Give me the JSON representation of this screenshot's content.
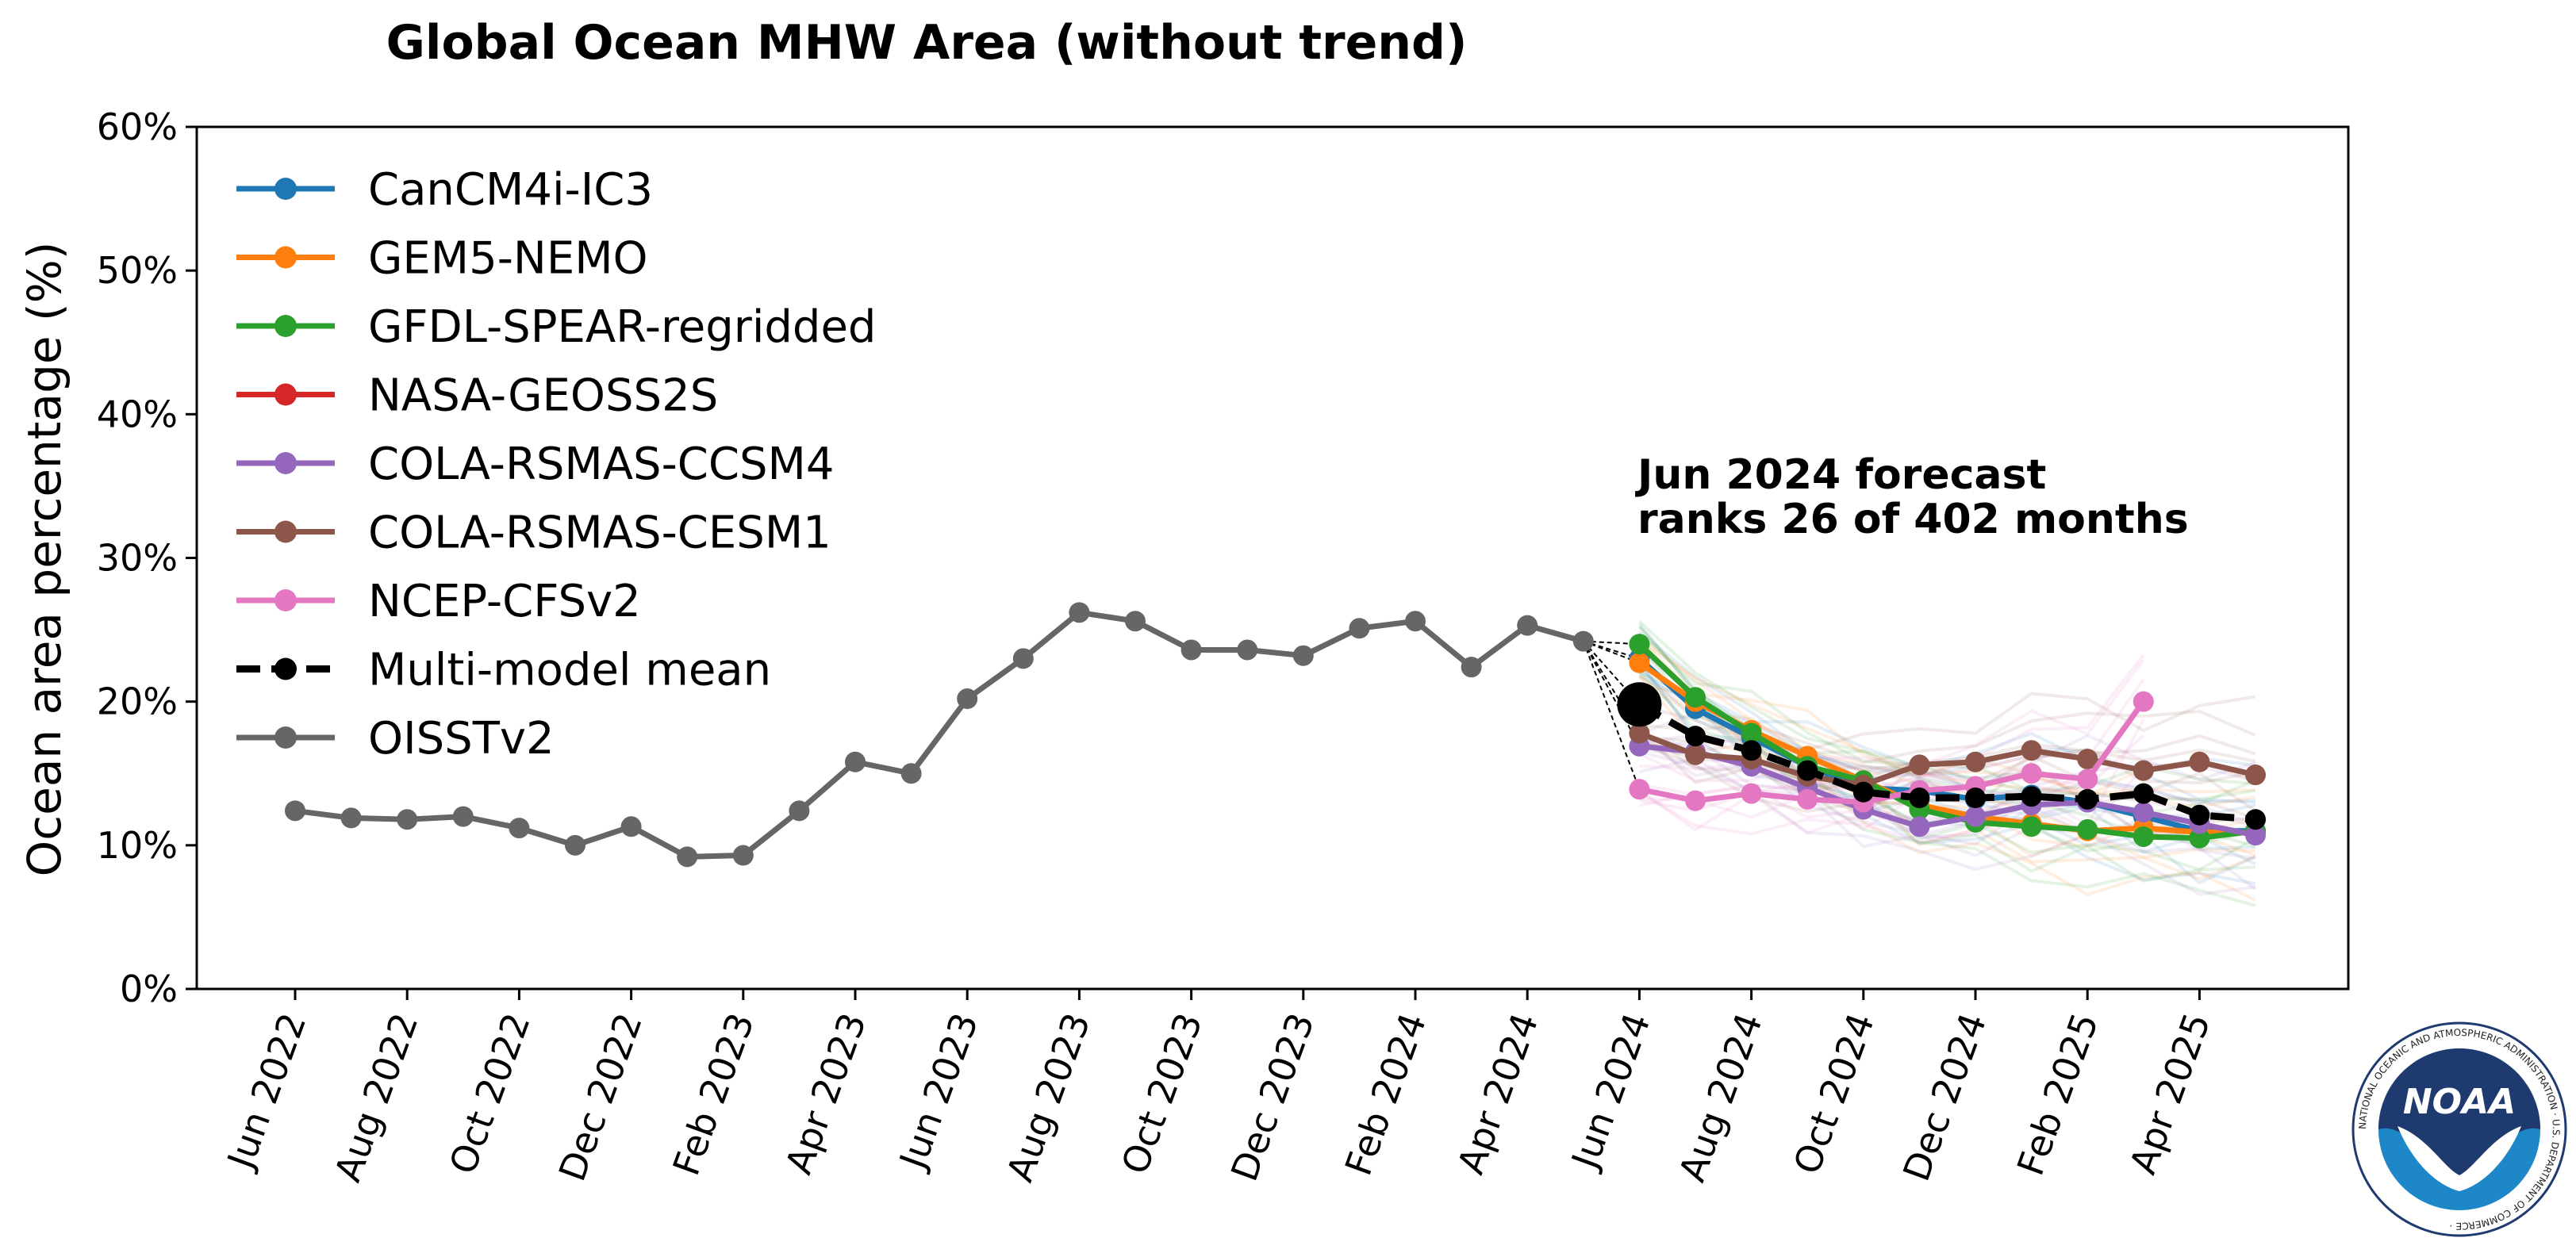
{
  "chart_data": {
    "type": "line",
    "title": "Global Ocean MHW Area (without trend)",
    "ylabel": "Ocean area percentage (%)",
    "xlabel": "",
    "ylim": [
      0,
      60
    ],
    "yticks": [
      "0%",
      "10%",
      "20%",
      "30%",
      "40%",
      "50%",
      "60%"
    ],
    "xtick_labels": [
      "Jun 2022",
      "Aug 2022",
      "Oct 2022",
      "Dec 2022",
      "Feb 2023",
      "Apr 2023",
      "Jun 2023",
      "Aug 2023",
      "Oct 2023",
      "Dec 2023",
      "Feb 2024",
      "Apr 2024",
      "Jun 2024",
      "Aug 2024",
      "Oct 2024",
      "Dec 2024",
      "Feb 2025",
      "Apr 2025"
    ],
    "months": [
      "Jun 2022",
      "Jul 2022",
      "Aug 2022",
      "Sep 2022",
      "Oct 2022",
      "Nov 2022",
      "Dec 2022",
      "Jan 2023",
      "Feb 2023",
      "Mar 2023",
      "Apr 2023",
      "May 2023",
      "Jun 2023",
      "Jul 2023",
      "Aug 2023",
      "Sep 2023",
      "Oct 2023",
      "Nov 2023",
      "Dec 2023",
      "Jan 2024",
      "Feb 2024",
      "Mar 2024",
      "Apr 2024",
      "May 2024",
      "Jun 2024",
      "Jul 2024",
      "Aug 2024",
      "Sep 2024",
      "Oct 2024",
      "Nov 2024",
      "Dec 2024",
      "Jan 2025",
      "Feb 2025",
      "Mar 2025",
      "Apr 2025",
      "May 2025"
    ],
    "grid": false,
    "legend_position": "top-left",
    "annotation": [
      "Jun 2024 forecast",
      "ranks 26 of 402 months"
    ],
    "series": [
      {
        "name": "CanCM4i-IC3",
        "color": "#1f77b4",
        "start": "Jun 2024",
        "values": [
          23.0,
          19.5,
          17.5,
          15.5,
          14.0,
          13.8,
          13.2,
          13.5,
          13.0,
          12.0,
          11.0,
          11.0
        ]
      },
      {
        "name": "GEM5-NEMO",
        "color": "#ff7f0e",
        "start": "Jun 2024",
        "values": [
          22.7,
          20.0,
          18.0,
          16.2,
          14.5,
          12.8,
          12.0,
          11.5,
          11.0,
          11.2,
          10.9,
          10.9
        ]
      },
      {
        "name": "GFDL-SPEAR-regridded",
        "color": "#2ca02c",
        "start": "Jun 2024",
        "values": [
          24.0,
          20.3,
          17.8,
          15.5,
          14.5,
          12.5,
          11.6,
          11.3,
          11.1,
          10.6,
          10.5,
          11.0
        ]
      },
      {
        "name": "NASA-GEOSS2S",
        "color": "#d62728",
        "start": "Jun 2024",
        "values": []
      },
      {
        "name": "COLA-RSMAS-CCSM4",
        "color": "#9467bd",
        "start": "Jun 2024",
        "values": [
          16.9,
          16.5,
          15.5,
          14.0,
          12.5,
          11.3,
          12.0,
          12.8,
          13.0,
          12.3,
          11.5,
          10.7
        ]
      },
      {
        "name": "COLA-RSMAS-CESM1",
        "color": "#8c564b",
        "start": "Jun 2024",
        "values": [
          17.8,
          16.3,
          16.0,
          14.8,
          14.2,
          15.6,
          15.8,
          16.6,
          16.0,
          15.2,
          15.8,
          14.9
        ]
      },
      {
        "name": "NCEP-CFSv2",
        "color": "#e377c2",
        "start": "Jun 2024",
        "values": [
          13.9,
          13.1,
          13.6,
          13.2,
          13.0,
          13.8,
          14.1,
          15.0,
          14.6,
          20.0
        ]
      },
      {
        "name": "Multi-model mean",
        "color": "#000000",
        "start": "Jun 2024",
        "dashed": true,
        "values": [
          19.8,
          17.6,
          16.6,
          15.2,
          13.7,
          13.3,
          13.3,
          13.4,
          13.2,
          13.6,
          12.1,
          11.8
        ]
      },
      {
        "name": "OISSTv2",
        "color": "#666666",
        "start": "Jun 2022",
        "values": [
          12.4,
          11.9,
          11.8,
          12.0,
          11.2,
          10.0,
          11.3,
          9.2,
          9.3,
          12.4,
          15.8,
          15.0,
          20.2,
          23.0,
          26.2,
          25.6,
          23.6,
          23.6,
          23.2,
          25.1,
          25.6,
          22.4,
          25.3,
          24.2
        ]
      }
    ]
  },
  "logo": {
    "word": "NOAA",
    "ring_text": "NATIONAL OCEANIC AND ATMOSPHERIC ADMINISTRATION · U.S. DEPARTMENT OF COMMERCE ·",
    "colors": {
      "navy": "#1f3a6e",
      "blue": "#1e87c8",
      "white": "#ffffff"
    }
  }
}
